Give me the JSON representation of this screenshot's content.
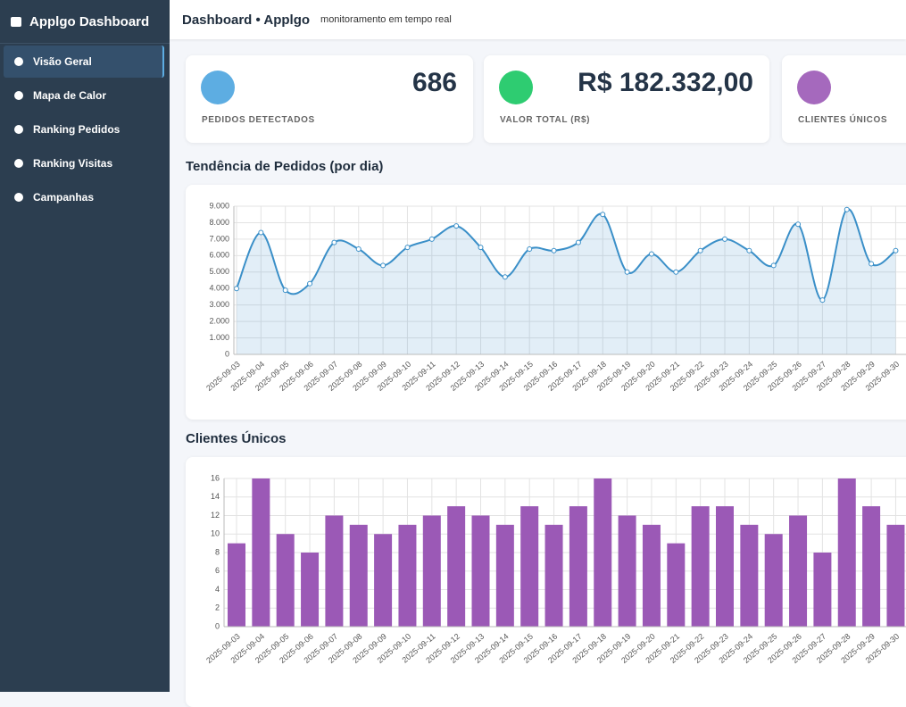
{
  "sidebar": {
    "title": "Applgo Dashboard",
    "items": [
      "Visão Geral",
      "Mapa de Calor",
      "Ranking Pedidos",
      "Ranking Visitas",
      "Campanhas"
    ]
  },
  "header": {
    "title": "Dashboard • Applgo",
    "subtitle": "monitoramento em tempo real"
  },
  "cards": [
    {
      "value": 686,
      "label": "PEDIDOS DETECTADOS"
    },
    {
      "value": "R$ 182.332,00",
      "label": "VALOR TOTAL (R$)"
    },
    {
      "label": "CLIENTES ÚNICOS"
    }
  ],
  "chart_data": [
    {
      "type": "line",
      "title": "Tendência de Pedidos (por dia)",
      "categories": [
        "2025-09-03",
        "2025-09-04",
        "2025-09-05",
        "2025-09-06",
        "2025-09-07",
        "2025-09-08",
        "2025-09-09",
        "2025-09-10",
        "2025-09-11",
        "2025-09-12",
        "2025-09-13",
        "2025-09-14",
        "2025-09-15",
        "2025-09-16",
        "2025-09-17",
        "2025-09-18",
        "2025-09-19",
        "2025-09-20",
        "2025-09-21",
        "2025-09-22",
        "2025-09-23",
        "2025-09-24",
        "2025-09-25",
        "2025-09-26",
        "2025-09-27",
        "2025-09-28",
        "2025-09-29",
        "2025-09-30"
      ],
      "values": [
        4000,
        7400,
        3900,
        4300,
        6800,
        6400,
        5400,
        6500,
        7000,
        7800,
        6500,
        4700,
        6400,
        6300,
        6800,
        8500,
        5000,
        6100,
        5000,
        6300,
        7000,
        6300,
        5400,
        7900,
        3300,
        8800,
        5500,
        6300
      ],
      "color": "#3a8fc8",
      "ylim": [
        0,
        9000
      ],
      "yticks": [
        0,
        {
          "value": 1000,
          "label": "1.000"
        },
        {
          "value": 2000,
          "label": "2.000"
        },
        {
          "value": 3000,
          "label": "3.000"
        },
        {
          "value": 4000,
          "label": "4.000"
        },
        {
          "value": 5000,
          "label": "5.000"
        },
        {
          "value": 6000,
          "label": "6.000"
        },
        {
          "value": 7000,
          "label": "7.000"
        },
        {
          "value": 8000,
          "label": "8.000"
        },
        {
          "value": 9000,
          "label": "9.000"
        }
      ],
      "grid": true
    },
    {
      "type": "bar",
      "title": "Clientes Únicos",
      "categories": [
        "2025-09-03",
        "2025-09-04",
        "2025-09-05",
        "2025-09-06",
        "2025-09-07",
        "2025-09-08",
        "2025-09-09",
        "2025-09-10",
        "2025-09-11",
        "2025-09-12",
        "2025-09-13",
        "2025-09-14",
        "2025-09-15",
        "2025-09-16",
        "2025-09-17",
        "2025-09-18",
        "2025-09-19",
        "2025-09-20",
        "2025-09-21",
        "2025-09-22",
        "2025-09-23",
        "2025-09-24",
        "2025-09-25",
        "2025-09-26",
        "2025-09-27",
        "2025-09-28",
        "2025-09-29",
        "2025-09-30"
      ],
      "values": [
        9,
        16,
        10,
        8,
        12,
        11,
        10,
        11,
        12,
        13,
        12,
        11,
        13,
        11,
        13,
        16,
        12,
        11,
        9,
        13,
        13,
        11,
        10,
        12,
        8,
        16,
        13,
        11
      ],
      "color": "#9b59b6",
      "ylim": [
        0,
        16
      ],
      "yticks": [
        0,
        2,
        4,
        6,
        8,
        10,
        12,
        14,
        16
      ],
      "grid": true
    }
  ]
}
